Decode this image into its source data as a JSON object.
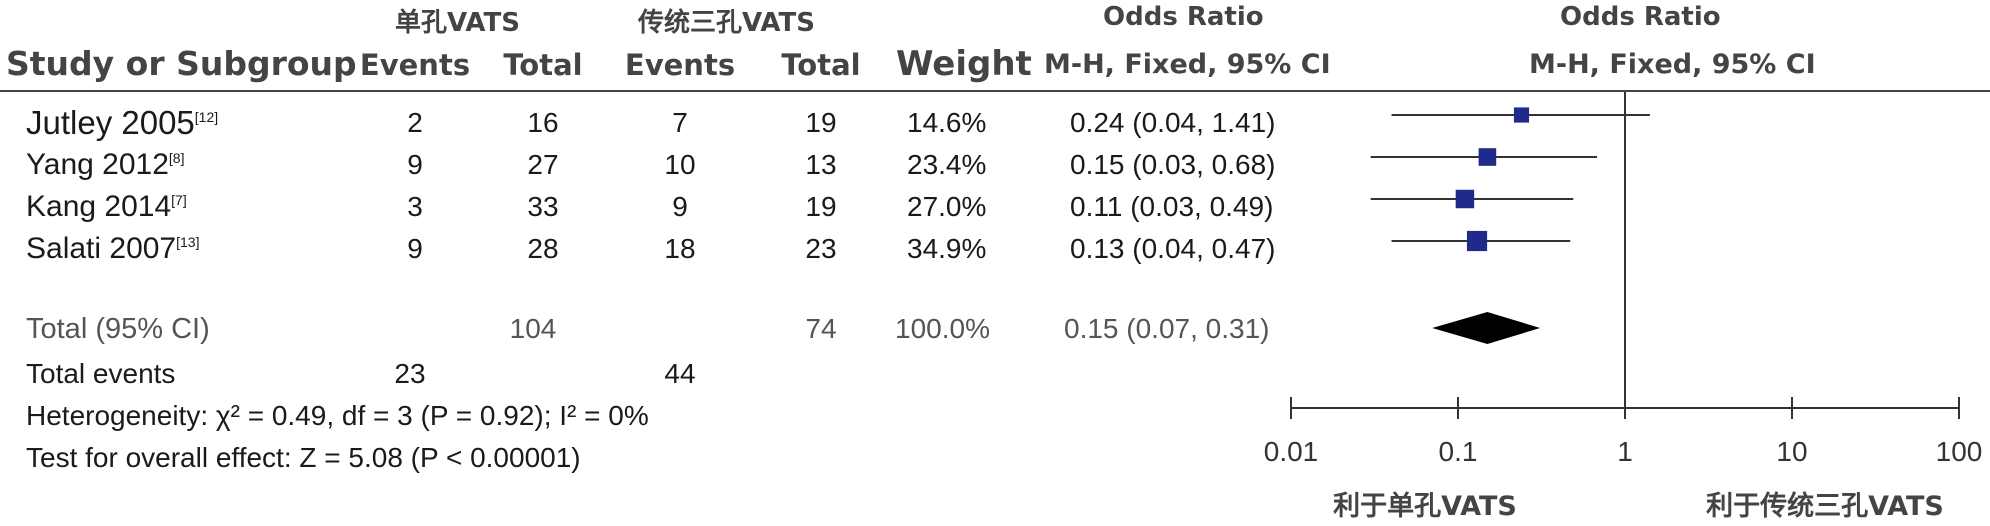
{
  "headers": {
    "group_single": "单孔VATS",
    "group_triple": "传统三孔VATS",
    "odds_ratio_left": "Odds Ratio",
    "odds_ratio_right": "Odds Ratio",
    "study": "Study or Subgroup",
    "events1": "Events",
    "total1": "Total",
    "events2": "Events",
    "total2": "Total",
    "weight": "Weight",
    "method_left": "M-H, Fixed, 95% CI",
    "method_right": "M-H, Fixed, 95% CI"
  },
  "studies": [
    {
      "name": "Jutley 2005",
      "ref": "[12]",
      "events1": "2",
      "total1": "16",
      "events2": "7",
      "total2": "19",
      "weight": "14.6%",
      "ci_text": "0.24 (0.04, 1.41)"
    },
    {
      "name": "Yang 2012",
      "ref": "[8]",
      "events1": "9",
      "total1": "27",
      "events2": "10",
      "total2": "13",
      "weight": "23.4%",
      "ci_text": "0.15 (0.03, 0.68)"
    },
    {
      "name": "Kang 2014",
      "ref": "[7]",
      "events1": "3",
      "total1": "33",
      "events2": "9",
      "total2": "19",
      "weight": "27.0%",
      "ci_text": "0.11 (0.03, 0.49)"
    },
    {
      "name": "Salati 2007",
      "ref": "[13]",
      "events1": "9",
      "total1": "28",
      "events2": "18",
      "total2": "23",
      "weight": "34.9%",
      "ci_text": "0.13 (0.04, 0.47)"
    }
  ],
  "total_row": {
    "label": "Total (95% CI)",
    "total1": "104",
    "total2": "74",
    "weight": "100.0%",
    "ci_text": "0.15 (0.07, 0.31)"
  },
  "events_row": {
    "label": "Total events",
    "events1": "23",
    "events2": "44"
  },
  "heterogeneity": "Heterogeneity: χ² = 0.49, df = 3 (P = 0.92); I² = 0%",
  "overall_effect": "Test for overall effect: Z = 5.08 (P < 0.00001)",
  "axis": {
    "ticks": [
      "0.01",
      "0.1",
      "1",
      "10",
      "100"
    ],
    "favours_left": "利于单孔VATS",
    "favours_right": "利于传统三孔VATS"
  },
  "colors": {
    "marker": "#1f2a8a",
    "diamond": "#000000",
    "line": "#333333"
  },
  "chart_data": {
    "type": "forest",
    "scale": "log",
    "xlim": [
      0.01,
      100
    ],
    "reference_line": 1,
    "studies": [
      {
        "name": "Jutley 2005",
        "or": 0.24,
        "lower": 0.04,
        "upper": 1.41,
        "weight": 14.6
      },
      {
        "name": "Yang 2012",
        "or": 0.15,
        "lower": 0.03,
        "upper": 0.68,
        "weight": 23.4
      },
      {
        "name": "Kang 2014",
        "or": 0.11,
        "lower": 0.03,
        "upper": 0.49,
        "weight": 27.0
      },
      {
        "name": "Salati 2007",
        "or": 0.13,
        "lower": 0.04,
        "upper": 0.47,
        "weight": 34.9
      }
    ],
    "pooled": {
      "or": 0.15,
      "lower": 0.07,
      "upper": 0.31
    }
  }
}
